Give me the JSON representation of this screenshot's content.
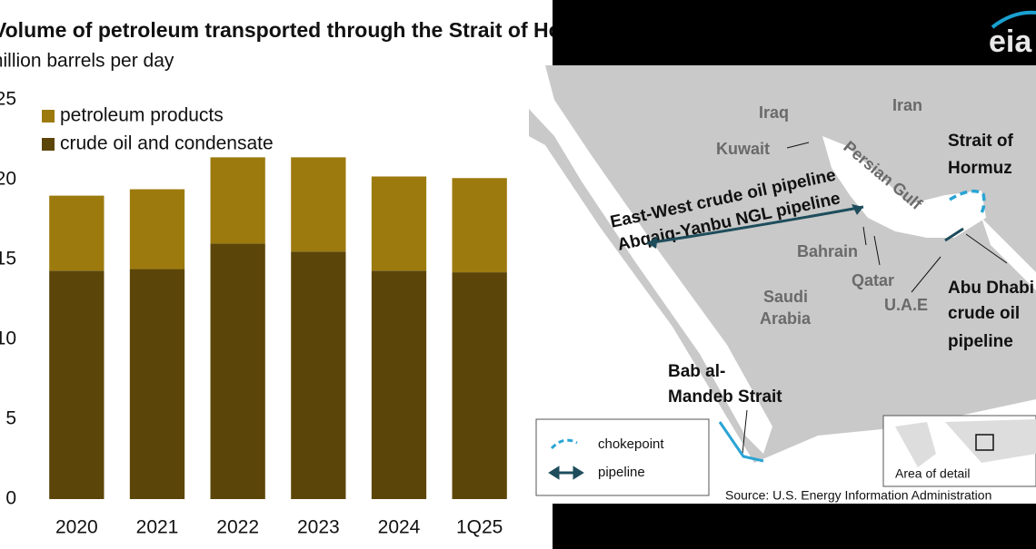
{
  "chart_data": {
    "type": "stacked-bar",
    "title": "Volume of petroleum transported through the Strait of Hormuz",
    "subtitle": "million barrels per day",
    "categories": [
      "2020",
      "2021",
      "2022",
      "2023",
      "2024",
      "1Q25"
    ],
    "series": [
      {
        "name": "crude oil and condensate",
        "color": "#5c4508",
        "values": [
          14.3,
          14.4,
          16.0,
          15.5,
          14.3,
          14.2
        ]
      },
      {
        "name": "petroleum products",
        "color": "#9c7a0e",
        "values": [
          4.7,
          5.0,
          5.4,
          5.9,
          5.9,
          5.9
        ]
      }
    ],
    "ylim": [
      0,
      25
    ],
    "yticks": [
      0,
      5,
      10,
      15,
      20,
      25
    ],
    "grid": false,
    "legend": "top-left"
  },
  "map": {
    "logo": "eia",
    "labels": {
      "iraq": "Iraq",
      "iran": "Iran",
      "kuwait": "Kuwait",
      "persian_gulf": "Persian Gulf",
      "bahrain": "Bahrain",
      "qatar": "Qatar",
      "uae": "U.A.E",
      "saudi_arabia": [
        "Saudi",
        "Arabia"
      ]
    },
    "callouts": {
      "hormuz": [
        "Strait of",
        "Hormuz"
      ],
      "east_west": "East-West crude oil pipeline",
      "abqaiq": "Abqaiq-Yanbu NGL pipeline",
      "abu_dhabi": [
        "Abu Dhabi",
        "crude oil",
        "pipeline"
      ],
      "bab": [
        "Bab al-",
        "Mandeb Strait"
      ]
    },
    "legend": [
      "chokepoint",
      "pipeline"
    ],
    "inset": "Area of detail",
    "source": "Source: U.S. Energy Information Administration"
  }
}
